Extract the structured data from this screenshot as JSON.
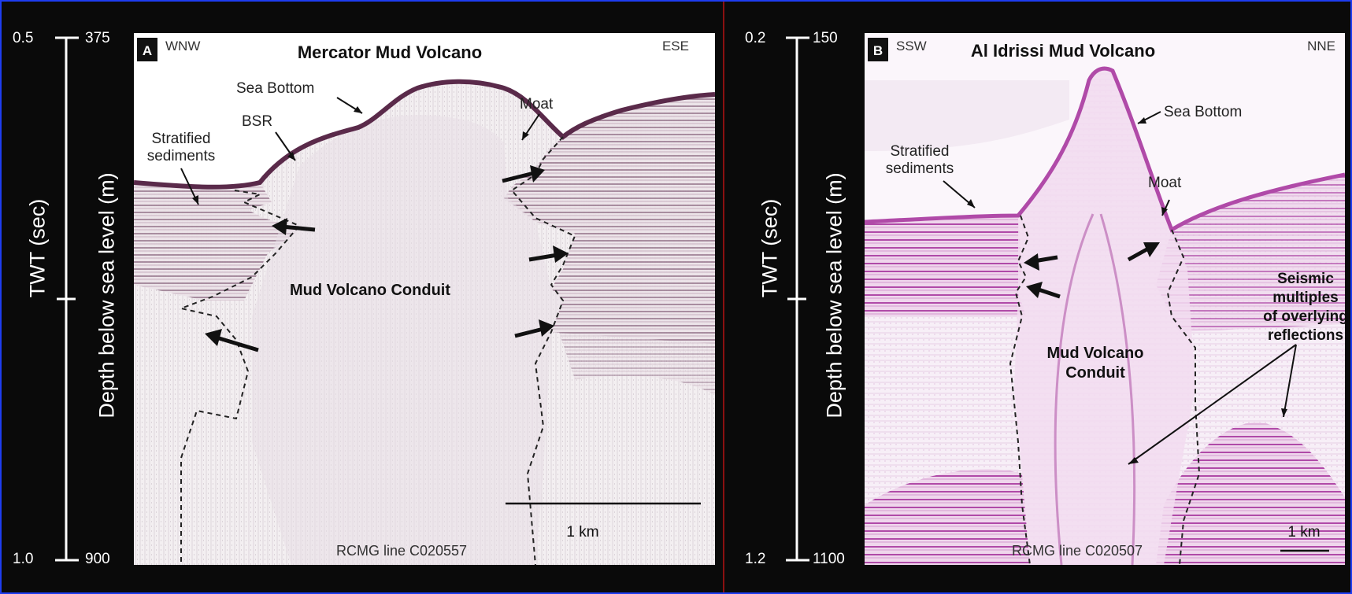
{
  "panel_a": {
    "letter": "A",
    "title": "Mercator Mud Volcano",
    "dir_left": "WNW",
    "dir_right": "ESE",
    "twt_top": "0.5",
    "twt_bottom": "1.0",
    "depth_top": "375",
    "depth_bottom": "900",
    "twt_label": "TWT",
    "twt_unit": "(sec)",
    "depth_label": "Depth below sea level",
    "depth_unit": "(m)",
    "labels": {
      "sea_bottom": "Sea Bottom",
      "moat": "Moat",
      "bsr": "BSR",
      "stratified_1": "Stratified",
      "stratified_2": "sediments",
      "conduit": "Mud Volcano Conduit"
    },
    "line_id": "RCMG line  C020557",
    "scale": "1 km",
    "colors": {
      "ink": "#5a2a4a",
      "bg": "#f2eef0"
    }
  },
  "panel_b": {
    "letter": "B",
    "title": "Al  Idrissi Mud Volcano",
    "dir_left": "SSW",
    "dir_right": "NNE",
    "twt_top": "0.2",
    "twt_bottom": "1.2",
    "depth_top": "150",
    "depth_bottom": "1100",
    "twt_label": "TWT",
    "twt_unit": "(sec)",
    "depth_label": "Depth below sea level",
    "depth_unit": "(m)",
    "labels": {
      "sea_bottom": "Sea Bottom",
      "moat": "Moat",
      "stratified_1": "Stratified",
      "stratified_2": "sediments",
      "conduit_1": "Mud Volcano",
      "conduit_2": "Conduit",
      "multiples_1": "Seismic",
      "multiples_2": "multiples",
      "multiples_3": "of overlying",
      "multiples_4": "reflections"
    },
    "line_id": "RCMG line  C020507",
    "scale": "1 km",
    "colors": {
      "ink": "#b04aa8",
      "bg": "#f6eef6"
    }
  }
}
